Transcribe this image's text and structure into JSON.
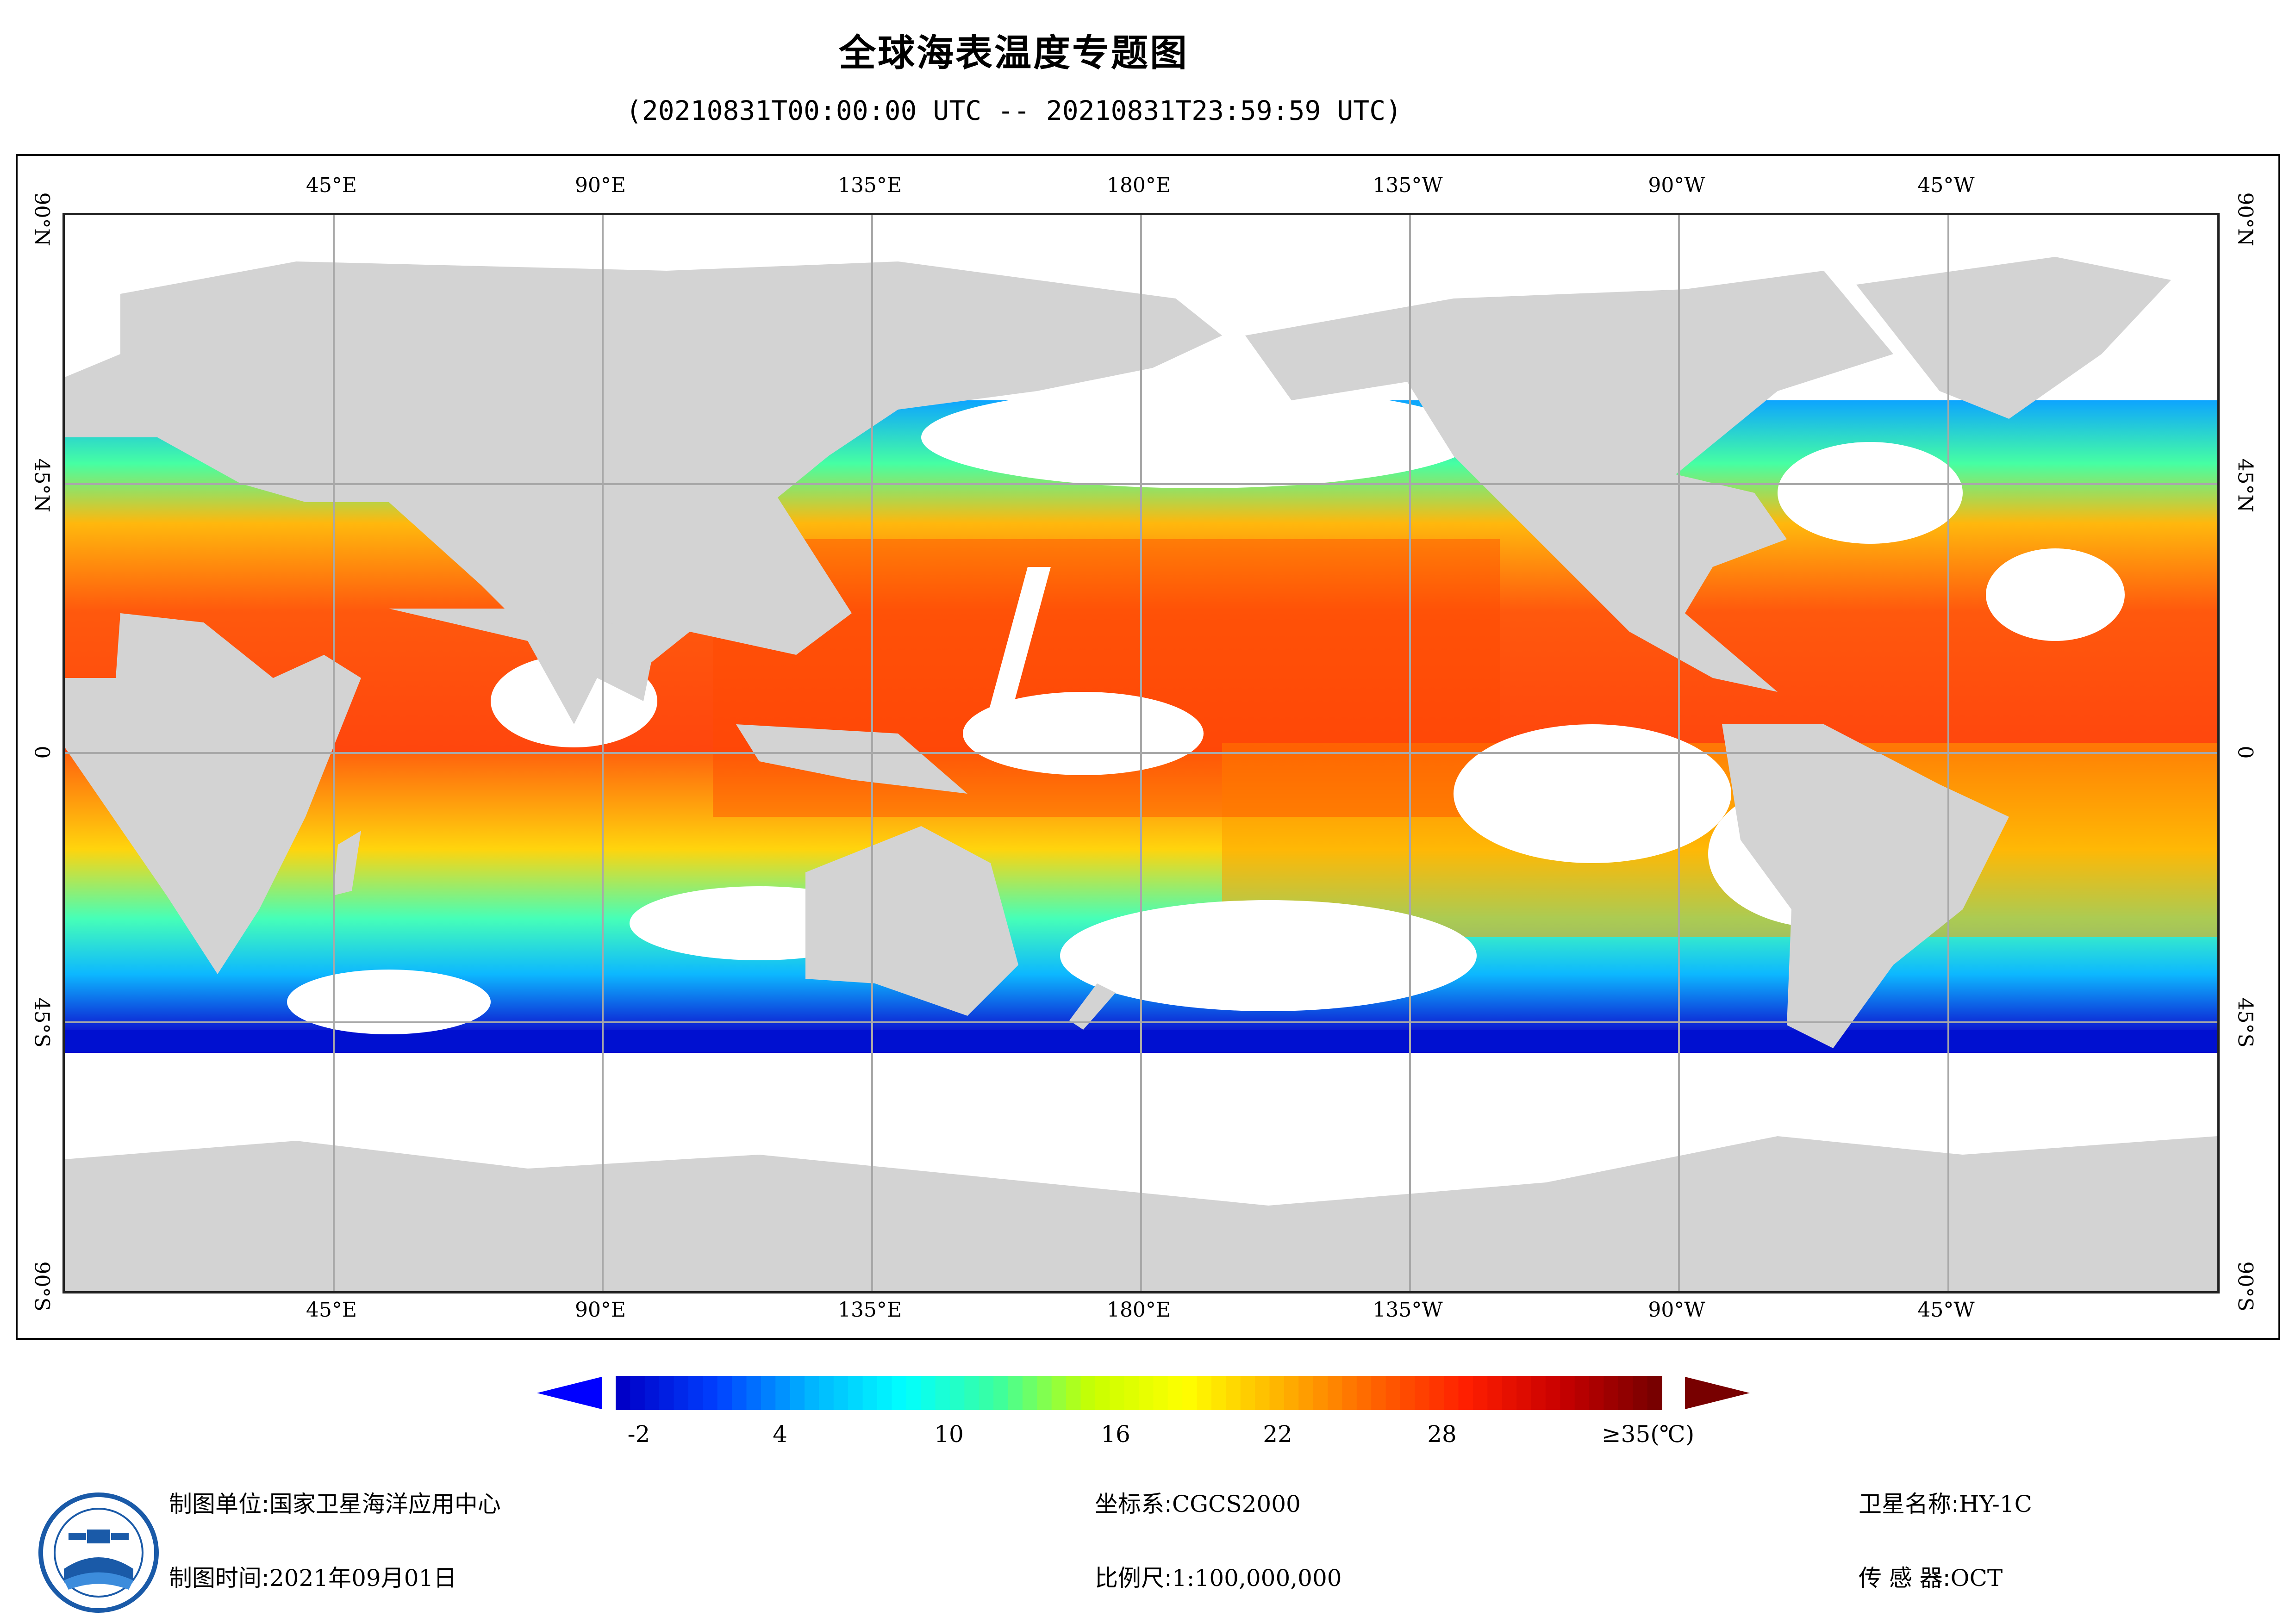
{
  "header": {
    "title": "全球海表温度专题图",
    "subtitle": "(20210831T00:00:00 UTC -- 20210831T23:59:59 UTC)"
  },
  "map": {
    "longitude_labels": [
      "45°E",
      "90°E",
      "135°E",
      "180°E",
      "135°W",
      "90°W",
      "45°W"
    ],
    "latitude_labels": [
      "90°N",
      "45°N",
      "0",
      "45°S",
      "90°S"
    ],
    "colors": {
      "land": "#d3d3d3",
      "no_data": "#ffffff",
      "grid": "#a8a8a8"
    }
  },
  "legend": {
    "tick_labels": [
      "-2",
      "4",
      "10",
      "16",
      "22",
      "28",
      "≥35(℃)"
    ],
    "min_value": -2,
    "max_value": 35,
    "colors": [
      "#0000c8",
      "#0040ff",
      "#00b4ff",
      "#00ffff",
      "#3cff9e",
      "#c8ff00",
      "#ffff00",
      "#ffb400",
      "#ff6400",
      "#ff1e00",
      "#c80000",
      "#780000"
    ],
    "under_color": "#0000ff",
    "over_color": "#780000"
  },
  "footer": {
    "producer_label": "制图单位:",
    "producer_value": "国家卫星海洋应用中心",
    "date_label": "制图时间:",
    "date_value": "2021年09月01日",
    "crs_label": "坐标系:",
    "crs_value": "CGCS2000",
    "scale_label": "比例尺:",
    "scale_value": "1:100,000,000",
    "satellite_label": "卫星名称:",
    "satellite_value": "HY-1C",
    "sensor_label": "传 感 器:",
    "sensor_value": "OCT"
  }
}
